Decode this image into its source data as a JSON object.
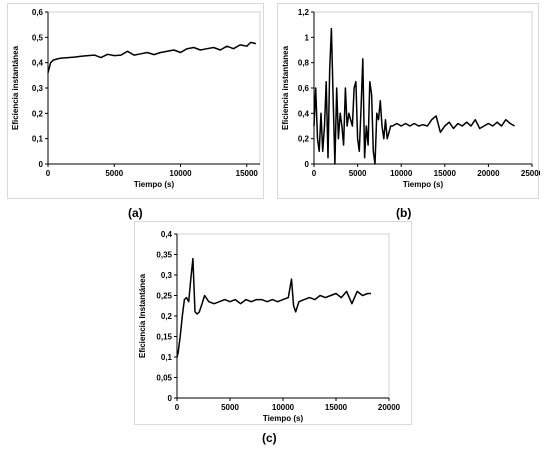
{
  "chart_data": [
    {
      "type": "line",
      "caption": "(a)",
      "xlabel": "Tiempo (s)",
      "ylabel": "Eficiencia instantánea",
      "xlim": [
        0,
        16000
      ],
      "ylim": [
        0,
        0.6
      ],
      "xticks": [
        0,
        5000,
        10000,
        15000
      ],
      "xtick_labels": [
        "0",
        "5000",
        "10000",
        "15000"
      ],
      "yticks": [
        0,
        0.1,
        0.2,
        0.3,
        0.4,
        0.5,
        0.6
      ],
      "ytick_labels": [
        "0",
        "0,1",
        "0,2",
        "0,3",
        "0,4",
        "0,5",
        "0,6"
      ],
      "grid": false,
      "legend": "none",
      "series": [
        {
          "color": "#000000",
          "x": [
            0,
            100,
            200,
            400,
            700,
            1000,
            1500,
            2000,
            2500,
            3000,
            3500,
            4000,
            4500,
            5000,
            5500,
            6000,
            6500,
            7000,
            7500,
            8000,
            8500,
            9000,
            9500,
            10000,
            10500,
            11000,
            11500,
            12000,
            12500,
            13000,
            13500,
            14000,
            14500,
            15000,
            15300,
            15700
          ],
          "y": [
            0.36,
            0.38,
            0.4,
            0.41,
            0.415,
            0.418,
            0.42,
            0.422,
            0.425,
            0.428,
            0.43,
            0.42,
            0.433,
            0.428,
            0.43,
            0.445,
            0.43,
            0.435,
            0.44,
            0.432,
            0.44,
            0.445,
            0.45,
            0.44,
            0.455,
            0.46,
            0.45,
            0.455,
            0.46,
            0.45,
            0.465,
            0.455,
            0.47,
            0.465,
            0.48,
            0.475
          ]
        }
      ]
    },
    {
      "type": "line",
      "caption": "(b)",
      "xlabel": "Tiempo (s)",
      "ylabel": "Eficiencia instantanea",
      "xlim": [
        0,
        25000
      ],
      "ylim": [
        0,
        1.2
      ],
      "xticks": [
        0,
        5000,
        10000,
        15000,
        20000,
        25000
      ],
      "xtick_labels": [
        "0",
        "5000",
        "10000",
        "15000",
        "20000",
        "25000"
      ],
      "yticks": [
        0,
        0.2,
        0.4,
        0.6,
        0.8,
        1,
        1.2
      ],
      "ytick_labels": [
        "0",
        "0,2",
        "0,4",
        "0,6",
        "0,8",
        "1",
        "1,2"
      ],
      "grid": false,
      "legend": "none",
      "series": [
        {
          "color": "#000000",
          "x": [
            0,
            200,
            400,
            600,
            800,
            1000,
            1200,
            1400,
            1600,
            1800,
            2000,
            2200,
            2400,
            2600,
            2800,
            3000,
            3200,
            3400,
            3600,
            3800,
            4000,
            4200,
            4400,
            4600,
            4800,
            5000,
            5200,
            5400,
            5600,
            5800,
            6000,
            6200,
            6400,
            6600,
            6800,
            7000,
            7200,
            7400,
            7600,
            7800,
            8000,
            8200,
            8400,
            8600,
            8800,
            9000,
            9500,
            10000,
            10500,
            11000,
            11500,
            12000,
            12500,
            13000,
            13500,
            14000,
            14500,
            15000,
            15500,
            16000,
            16500,
            17000,
            17500,
            18000,
            18500,
            19000,
            19500,
            20000,
            20500,
            21000,
            21500,
            22000,
            22500,
            23000
          ],
          "y": [
            0.3,
            0.6,
            0.2,
            0.1,
            0.4,
            0.1,
            0.3,
            0.65,
            0.05,
            0.75,
            1.07,
            0.5,
            0.0,
            0.6,
            0.2,
            0.4,
            0.3,
            0.15,
            0.6,
            0.3,
            0.4,
            0.35,
            0.3,
            0.6,
            0.65,
            0.2,
            0.1,
            0.45,
            0.83,
            0.05,
            0.3,
            0.15,
            0.65,
            0.55,
            0.1,
            0.0,
            0.4,
            0.35,
            0.5,
            0.3,
            0.2,
            0.35,
            0.2,
            0.25,
            0.3,
            0.3,
            0.32,
            0.3,
            0.32,
            0.3,
            0.32,
            0.3,
            0.31,
            0.3,
            0.35,
            0.38,
            0.25,
            0.3,
            0.33,
            0.28,
            0.32,
            0.3,
            0.33,
            0.3,
            0.35,
            0.28,
            0.3,
            0.32,
            0.3,
            0.33,
            0.3,
            0.35,
            0.32,
            0.3
          ]
        }
      ]
    },
    {
      "type": "line",
      "caption": "(c)",
      "xlabel": "Tiempo (s)",
      "ylabel": "Eficiencia Instantánea",
      "xlim": [
        0,
        20000
      ],
      "ylim": [
        0,
        0.4
      ],
      "xticks": [
        0,
        5000,
        10000,
        15000,
        20000
      ],
      "xtick_labels": [
        "0",
        "5000",
        "10000",
        "15000",
        "20000"
      ],
      "yticks": [
        0,
        0.05,
        0.1,
        0.15,
        0.2,
        0.25,
        0.3,
        0.35,
        0.4
      ],
      "ytick_labels": [
        "0",
        "0,05",
        "0,1",
        "0,15",
        "0,2",
        "0,25",
        "0,3",
        "0,35",
        "0,4"
      ],
      "grid": false,
      "legend": "none",
      "series": [
        {
          "color": "#000000",
          "x": [
            0,
            100,
            300,
            500,
            700,
            900,
            1100,
            1300,
            1500,
            1700,
            1900,
            2100,
            2300,
            2600,
            3000,
            3500,
            4000,
            4500,
            5000,
            5500,
            6000,
            6500,
            7000,
            7500,
            8000,
            8500,
            9000,
            9500,
            10000,
            10500,
            10800,
            11000,
            11200,
            11500,
            12000,
            12500,
            13000,
            13500,
            14000,
            14500,
            15000,
            15500,
            16000,
            16500,
            17000,
            17500,
            18000,
            18300
          ],
          "y": [
            0.1,
            0.11,
            0.15,
            0.2,
            0.24,
            0.245,
            0.235,
            0.29,
            0.34,
            0.21,
            0.205,
            0.21,
            0.225,
            0.25,
            0.235,
            0.23,
            0.235,
            0.24,
            0.235,
            0.24,
            0.23,
            0.24,
            0.235,
            0.24,
            0.24,
            0.235,
            0.24,
            0.235,
            0.24,
            0.245,
            0.29,
            0.225,
            0.21,
            0.235,
            0.24,
            0.245,
            0.24,
            0.25,
            0.245,
            0.25,
            0.255,
            0.245,
            0.26,
            0.23,
            0.26,
            0.25,
            0.255,
            0.255
          ]
        }
      ]
    }
  ]
}
